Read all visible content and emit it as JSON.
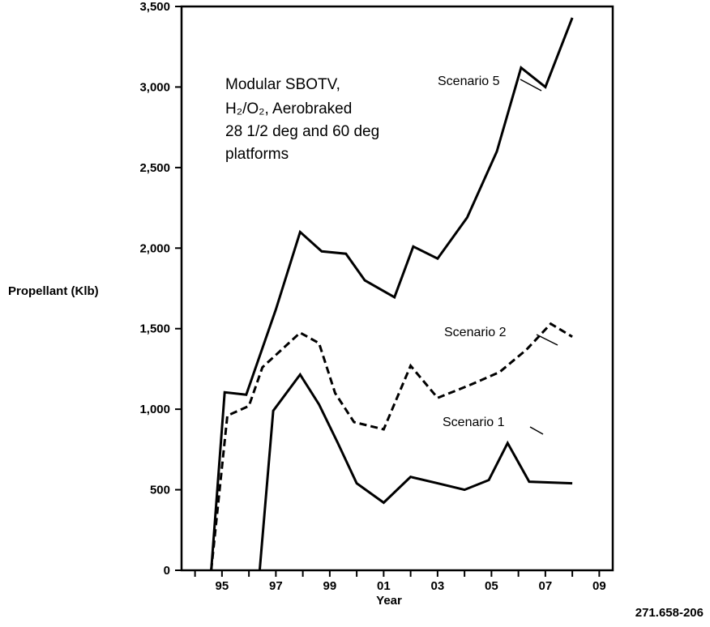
{
  "chart_data": {
    "type": "line",
    "xlabel": "Year",
    "ylabel": "Propellant (Klb)",
    "x": [
      1994.5,
      1995.2,
      1996.0,
      1996.5,
      1997.0,
      1998.3,
      1999.0,
      1999.6,
      2000.3,
      2001.0,
      2002.2,
      2003.0,
      2004.0,
      2005.0,
      2005.7,
      2006.4,
      2007.0,
      2008.3,
      2009.0
    ],
    "xlim": [
      1993.5,
      2009.5
    ],
    "x_ticks": [
      "95",
      "97",
      "99",
      "01",
      "03",
      "05",
      "07",
      "09"
    ],
    "ylim": [
      0,
      3500
    ],
    "y_ticks": [
      "0",
      "500",
      "1,000",
      "1,500",
      "2,000",
      "2,500",
      "3,000",
      "3,500"
    ],
    "grid": false,
    "series": [
      {
        "name": "Scenario 5",
        "style": "solid",
        "points": [
          [
            1994.6,
            0
          ],
          [
            1995.1,
            1105
          ],
          [
            1995.9,
            1090
          ],
          [
            1997.0,
            1620
          ],
          [
            1997.9,
            2100
          ],
          [
            1998.7,
            1980
          ],
          [
            1999.6,
            1965
          ],
          [
            2000.3,
            1800
          ],
          [
            2001.4,
            1695
          ],
          [
            2002.1,
            2010
          ],
          [
            2003.0,
            1935
          ],
          [
            2004.1,
            2190
          ],
          [
            2005.2,
            2600
          ],
          [
            2006.1,
            3120
          ],
          [
            2007.0,
            3000
          ],
          [
            2008.0,
            3430
          ]
        ]
      },
      {
        "name": "Scenario 2",
        "style": "dashed",
        "points": [
          [
            1994.6,
            0
          ],
          [
            1995.2,
            960
          ],
          [
            1996.0,
            1020
          ],
          [
            1996.5,
            1260
          ],
          [
            1997.9,
            1475
          ],
          [
            1998.6,
            1410
          ],
          [
            1999.2,
            1100
          ],
          [
            1999.9,
            920
          ],
          [
            2001.0,
            875
          ],
          [
            2002.0,
            1270
          ],
          [
            2003.0,
            1070
          ],
          [
            2004.2,
            1150
          ],
          [
            2005.3,
            1230
          ],
          [
            2006.3,
            1370
          ],
          [
            2007.2,
            1530
          ],
          [
            2008.0,
            1450
          ]
        ]
      },
      {
        "name": "Scenario 1",
        "style": "solid",
        "points": [
          [
            1996.4,
            0
          ],
          [
            1996.9,
            990
          ],
          [
            1997.9,
            1215
          ],
          [
            1998.6,
            1030
          ],
          [
            1999.3,
            790
          ],
          [
            2000.0,
            540
          ],
          [
            2001.0,
            420
          ],
          [
            2002.0,
            580
          ],
          [
            2003.0,
            540
          ],
          [
            2004.0,
            500
          ],
          [
            2004.9,
            560
          ],
          [
            2005.6,
            790
          ],
          [
            2006.4,
            550
          ],
          [
            2008.0,
            540
          ]
        ]
      }
    ],
    "annotations": [
      "Modular SBOTV,",
      "H₂/O₂, Aerobraked",
      "28 1/2 deg and 60 deg",
      "platforms"
    ]
  },
  "figure_id": "271.658-206",
  "colors": {
    "line": "#000000",
    "background": "#ffffff"
  }
}
